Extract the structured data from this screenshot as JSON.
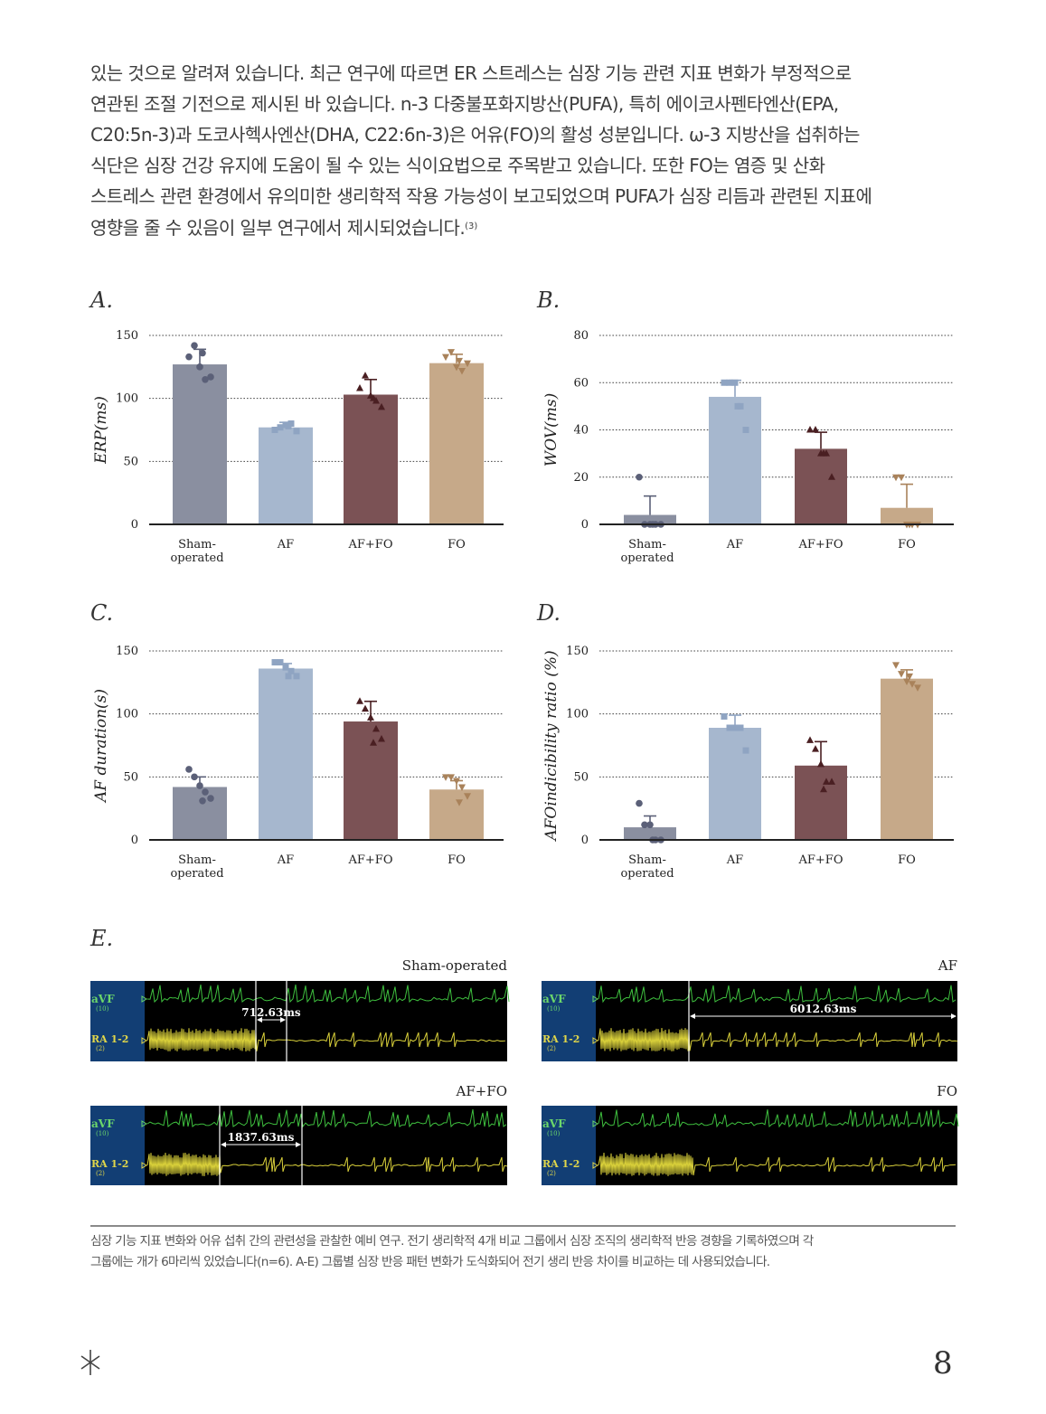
{
  "intro_lines": [
    "있는 것으로 알려져 있습니다. 최근 연구에 따르면 ER 스트레스는 심장 기능 관련 지표 변화가 부정적으로",
    "연관된 조절 기전으로 제시된 바 있습니다. n-3 다중불포화지방산(PUFA), 특히 에이코사펜타엔산(EPA,",
    "C20:5n-3)과 도코사헥사엔산(DHA, C22:6n-3)은 어유(FO)의 활성 성분입니다. ω-3 지방산을 섭취하는",
    "식단은 심장 건강 유지에 도움이 될 수 있는 식이요법으로 주목받고 있습니다. 또한 FO는 염증 및 산화",
    "스트레스 관련 환경에서 유의미한 생리학적 작용 가능성이 보고되었으며 PUFA가 심장 리듬과 관련된 지표에",
    "영향을 줄 수 있음이 일부 연구에서 제시되었습니다."
  ],
  "intro_ref": "(3)",
  "chart_data": [
    {
      "type": "bar",
      "panel": "A.",
      "ylabel": "ERP(ms)",
      "categories": [
        "Sham-operated",
        "AF",
        "AF+FO",
        "FO"
      ],
      "category_labels": [
        [
          "Sham-",
          "operated"
        ],
        [
          "AF"
        ],
        [
          "AF+FO"
        ],
        [
          "FO"
        ]
      ],
      "values": [
        127,
        77,
        103,
        128
      ],
      "error": [
        12,
        4,
        12,
        7
      ],
      "points": [
        [
          133,
          142,
          125,
          115,
          117,
          136
        ],
        [
          75,
          77,
          79,
          80,
          74,
          78
        ],
        [
          108,
          118,
          102,
          98,
          93,
          100
        ],
        [
          133,
          137,
          125,
          122,
          128,
          130
        ]
      ],
      "ylim": [
        0,
        150
      ],
      "yticks": [
        0,
        50,
        100,
        150
      ],
      "grid": true
    },
    {
      "type": "bar",
      "panel": "B.",
      "ylabel": "WOV(ms)",
      "categories": [
        "Sham-operated",
        "AF",
        "AF+FO",
        "FO"
      ],
      "category_labels": [
        [
          "Sham-",
          "operated"
        ],
        [
          "AF"
        ],
        [
          "AF+FO"
        ],
        [
          "FO"
        ]
      ],
      "values": [
        4,
        54,
        32,
        7
      ],
      "error": [
        8,
        7,
        7,
        10
      ],
      "points": [
        [
          20,
          0,
          0,
          0,
          0,
          0
        ],
        [
          60,
          60,
          60,
          50,
          40,
          50
        ],
        [
          40,
          40,
          30,
          30,
          20,
          30
        ],
        [
          20,
          20,
          0,
          0,
          0,
          0
        ]
      ],
      "ylim": [
        0,
        80
      ],
      "yticks": [
        0,
        20,
        40,
        60,
        80
      ],
      "grid": true
    },
    {
      "type": "bar",
      "panel": "C.",
      "ylabel": "AF duration(s)",
      "categories": [
        "Sham-operated",
        "AF",
        "AF+FO",
        "FO"
      ],
      "category_labels": [
        [
          "Sham-",
          "operated"
        ],
        [
          "AF"
        ],
        [
          "AF+FO"
        ],
        [
          "FO"
        ]
      ],
      "values": [
        42,
        136,
        94,
        40
      ],
      "error": [
        8,
        4,
        16,
        7
      ],
      "points": [
        [
          56,
          50,
          43,
          38,
          33,
          31
        ],
        [
          141,
          141,
          137,
          134,
          130,
          130
        ],
        [
          110,
          104,
          97,
          88,
          80,
          77
        ],
        [
          50,
          50,
          47,
          42,
          35,
          30
        ]
      ],
      "ylim": [
        0,
        150
      ],
      "yticks": [
        0,
        50,
        100,
        150
      ],
      "grid": true
    },
    {
      "type": "bar",
      "panel": "D.",
      "ylabel": "AFOindicibility ratio (%)",
      "categories": [
        "Sham-operated",
        "AF",
        "AF+FO",
        "FO"
      ],
      "category_labels": [
        [
          "Sham-",
          "operated"
        ],
        [
          "AF"
        ],
        [
          "AF+FO"
        ],
        [
          "FO"
        ]
      ],
      "values": [
        10,
        89,
        59,
        128
      ],
      "error": [
        9,
        10,
        19,
        7
      ],
      "points": [
        [
          29,
          12,
          12,
          0,
          0,
          0
        ],
        [
          98,
          89,
          89,
          89,
          71,
          89
        ],
        [
          79,
          72,
          60,
          46,
          46,
          40
        ],
        [
          139,
          132,
          126,
          124,
          121,
          130
        ]
      ],
      "ylim": [
        0,
        150
      ],
      "yticks": [
        0,
        50,
        100,
        150
      ],
      "grid": true
    }
  ],
  "ecg": {
    "panel": "E.",
    "channel_top": "aVF",
    "channel_top_gain": "(10)",
    "channel_bottom": "RA 1-2",
    "channel_bottom_gain": "(2)",
    "panels": [
      {
        "title": "Sham-operated",
        "measure": "712.63ms"
      },
      {
        "title": "AF",
        "measure": "6012.63ms"
      },
      {
        "title": "AF+FO",
        "measure": "1837.63ms"
      },
      {
        "title": "FO",
        "measure": ""
      }
    ]
  },
  "caption_lines": [
    "심장 기능 지표 변화와 어유 섭취 간의 관련성을 관찰한 예비 연구. 전기 생리학적 4개 비교 그룹에서 심장 조직의 생리학적 반응 경향을 기록하였으며 각",
    "그룹에는 개가 6마리씩 있었습니다(n=6). A-E) 그룹별 심장 반응 패턴 변화가 도식화되어 전기 생리 반응 차이를 비교하는 데 사용되었습니다."
  ],
  "page_number": "8",
  "colors": {
    "sham": "#8a8fa0",
    "af": "#a6b7ce",
    "affo": "#7b5255",
    "fo": "#c6a989",
    "ecg_green": "#3fc13f",
    "ecg_yellow": "#d9d03a",
    "ecg_side": "#123e74"
  }
}
